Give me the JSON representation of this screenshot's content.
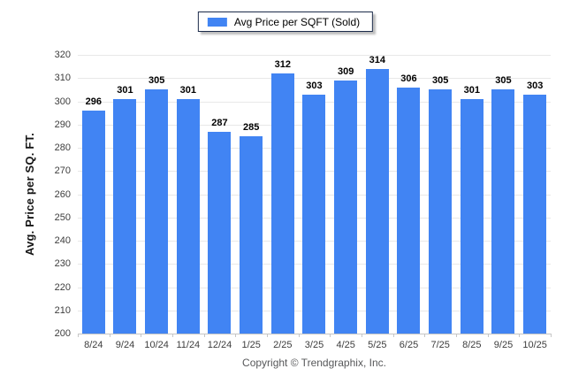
{
  "chart_data": {
    "type": "bar",
    "title": "",
    "xlabel": "",
    "ylabel": "Avg. Price per SQ. FT.",
    "categories": [
      "8/24",
      "9/24",
      "10/24",
      "11/24",
      "12/24",
      "1/25",
      "2/25",
      "3/25",
      "4/25",
      "5/25",
      "6/25",
      "7/25",
      "8/25",
      "9/25",
      "10/25"
    ],
    "series": [
      {
        "name": "Avg Price per SQFT (Sold)",
        "color": "#4184f3",
        "values": [
          296,
          301,
          305,
          301,
          287,
          285,
          312,
          303,
          309,
          314,
          306,
          305,
          301,
          305,
          303
        ]
      }
    ],
    "ylim": [
      200,
      320
    ],
    "ytick_step": 10,
    "grid": "horizontal",
    "legend_position": "top-center",
    "value_labels": "above-bars"
  },
  "footer": {
    "text": "Copyright © Trendgraphix, Inc."
  }
}
